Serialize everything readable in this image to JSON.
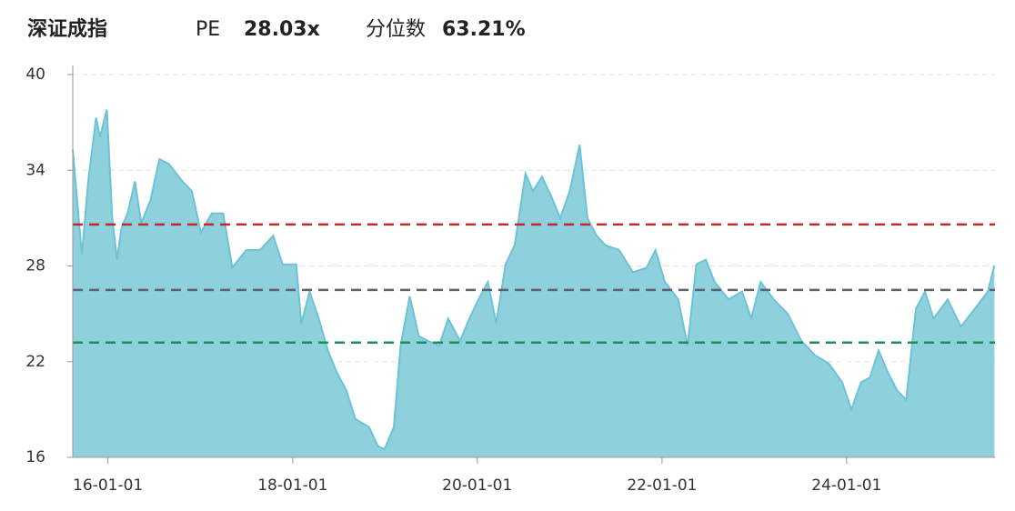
{
  "header": {
    "title": "深证成指",
    "pe_label": "PE",
    "pe_value": "28.03x",
    "pct_label": "分位数",
    "pct_value": "63.21%"
  },
  "chart_data": {
    "type": "area",
    "color": "#8fd0dd",
    "line_color": "#6cc3d6",
    "grid": true,
    "ylim": [
      16,
      40
    ],
    "yticks": [
      16,
      22,
      28,
      34,
      40
    ],
    "xlim": [
      "15-08-15",
      "25-08-10"
    ],
    "xticks": [
      "16-01-01",
      "18-01-01",
      "20-01-01",
      "22-01-01",
      "24-01-01"
    ],
    "reference_lines": [
      {
        "value": 30.6,
        "color": "#c0282a"
      },
      {
        "value": 26.5,
        "color": "#5c6272"
      },
      {
        "value": 23.2,
        "color": "#1a8f5c"
      }
    ],
    "x": [
      "15-08-15",
      "15-09-20",
      "15-10-15",
      "15-11-15",
      "15-12-01",
      "15-12-28",
      "16-01-18",
      "16-02-06",
      "16-02-24",
      "16-03-19",
      "16-04-17",
      "16-05-12",
      "16-06-17",
      "16-07-23",
      "16-08-29",
      "16-10-22",
      "16-11-28",
      "17-01-03",
      "17-02-15",
      "17-04-01",
      "17-05-07",
      "17-07-01",
      "17-08-24",
      "17-10-16",
      "17-11-22",
      "18-01-15",
      "18-02-04",
      "18-03-09",
      "18-04-14",
      "18-05-20",
      "18-06-25",
      "18-08-01",
      "18-09-06",
      "18-10-30",
      "18-12-04",
      "18-12-30",
      "19-02-05",
      "19-03-04",
      "19-04-09",
      "19-05-15",
      "19-06-20",
      "19-08-03",
      "19-09-08",
      "19-10-25",
      "19-12-01",
      "20-01-06",
      "20-02-12",
      "20-03-16",
      "20-04-22",
      "20-05-28",
      "20-07-10",
      "20-08-08",
      "20-09-13",
      "20-10-19",
      "20-11-24",
      "21-01-01",
      "21-02-09",
      "21-03-12",
      "21-04-17",
      "21-05-22",
      "21-07-15",
      "21-09-08",
      "21-11-01",
      "21-12-06",
      "22-01-12",
      "22-03-06",
      "22-04-12",
      "22-05-17",
      "22-06-23",
      "22-07-28",
      "22-09-21",
      "22-11-14",
      "22-12-20",
      "23-01-26",
      "23-03-19",
      "23-05-13",
      "23-07-06",
      "23-08-29",
      "23-10-22",
      "23-12-15",
      "24-01-20",
      "24-02-27",
      "24-04-02",
      "24-05-07",
      "24-06-13",
      "24-07-19",
      "24-08-24",
      "24-10-01",
      "24-11-06",
      "24-12-10",
      "25-02-04",
      "25-03-28",
      "25-05-21",
      "25-07-13",
      "25-08-08"
    ],
    "values": [
      35.3,
      28.7,
      33.3,
      37.3,
      36.1,
      37.8,
      31,
      28.4,
      30.4,
      31.3,
      33.3,
      30.7,
      32.1,
      34.7,
      34.4,
      33.3,
      32.7,
      30.1,
      31.3,
      31.3,
      27.9,
      29,
      29,
      29.9,
      28.1,
      28.1,
      24.4,
      26.4,
      24.7,
      22.7,
      21.3,
      20.2,
      18.4,
      17.9,
      16.7,
      16.5,
      17.9,
      23,
      26.1,
      23.6,
      23.3,
      23,
      24.7,
      23.3,
      24.7,
      25.9,
      27,
      24.4,
      28.1,
      29.3,
      33.8,
      32.7,
      33.6,
      32.4,
      31,
      32.7,
      35.6,
      31,
      29.9,
      29.3,
      29,
      27.6,
      27.9,
      29,
      27,
      25.9,
      23,
      28.1,
      28.4,
      27,
      25.9,
      26.4,
      24.7,
      27,
      25.9,
      25,
      23.3,
      22.4,
      21.9,
      20.7,
      19,
      20.7,
      21,
      22.7,
      21.3,
      20.2,
      19.6,
      25.3,
      26.4,
      24.7,
      25.9,
      24.2,
      25.3,
      26.4,
      28.03
    ]
  }
}
